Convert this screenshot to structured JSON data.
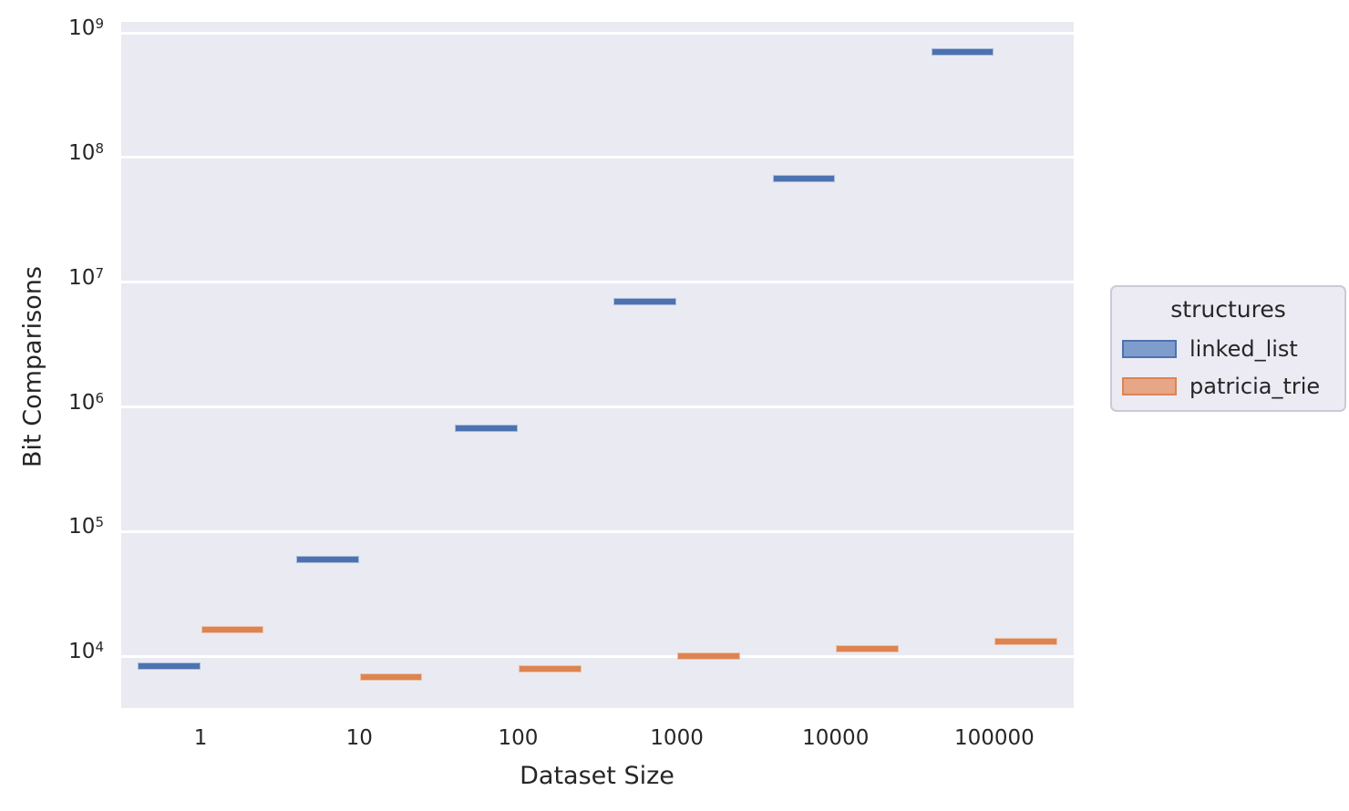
{
  "figure": {
    "xlabel": "Dataset Size",
    "ylabel": "Bit Comparisons"
  },
  "legend": {
    "title": "structures",
    "entries": [
      {
        "label": "linked_list",
        "fill": "#7f9dcc",
        "edge": "#4c72b0"
      },
      {
        "label": "patricia_trie",
        "fill": "#e7a685",
        "edge": "#dd8452"
      }
    ]
  },
  "chart_data": {
    "type": "box",
    "title": "",
    "xlabel": "Dataset Size",
    "ylabel": "Bit Comparisons",
    "categories": [
      "1",
      "10",
      "100",
      "1000",
      "10000",
      "100000"
    ],
    "series": [
      {
        "name": "linked_list",
        "fill": "#4c72b0",
        "edge": "#a9bbdc",
        "values": [
          8300,
          60000,
          670000,
          7000000,
          68000000,
          700000000
        ]
      },
      {
        "name": "patricia_trie",
        "fill": "#dd8452",
        "edge": "#ecc3a8",
        "values": [
          16500,
          6800,
          8000,
          10000,
          11500,
          13200
        ]
      }
    ],
    "y_scale": "log",
    "y_tick_exponents": [
      4,
      5,
      6,
      7,
      8,
      9
    ],
    "ylim_log10": [
      3.586,
      9.088
    ],
    "grid": "horizontal-white-on-lavender",
    "plot_bg": "#eaeaf2",
    "gridline_color": "#ffffff",
    "legend_title": "structures",
    "legend_position": "center-right-outside",
    "note": "Boxes have near-zero interquartile range and render as flat horizontal bars; blue boxes dodge left, orange boxes dodge right within each category."
  }
}
